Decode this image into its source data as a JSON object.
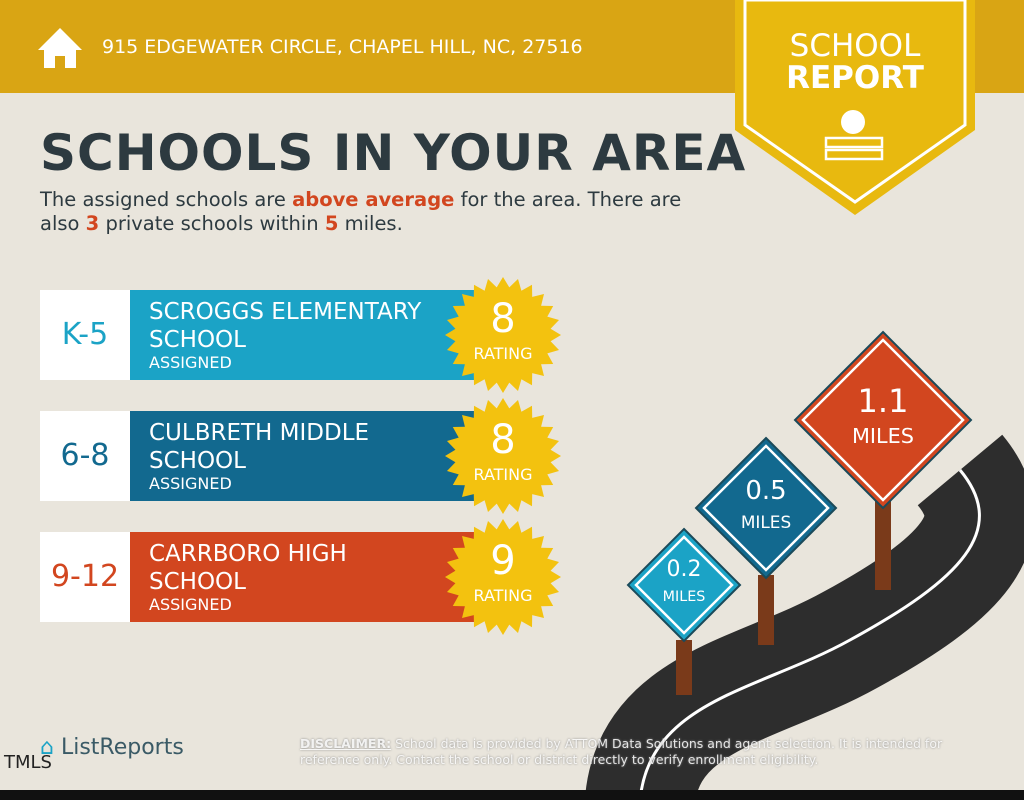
{
  "header": {
    "address": "915 EDGEWATER CIRCLE, CHAPEL HILL, NC, 27516",
    "badge_line1": "SCHOOL",
    "badge_line2": "REPORT"
  },
  "title": "SCHOOLS IN YOUR AREA",
  "summary": {
    "part1": "The assigned schools are",
    "highlight": "above average",
    "part2": "for the area. There are also",
    "count": "3",
    "part3": "private schools within",
    "distance": "5",
    "part4": "miles."
  },
  "schools": [
    {
      "grades": "K-5",
      "name": "SCROGGS ELEMENTARY SCHOOL",
      "status": "ASSIGNED",
      "rating": 8,
      "rating_label": "RATING",
      "color": "#1ba3c6"
    },
    {
      "grades": "6-8",
      "name": "CULBRETH MIDDLE SCHOOL",
      "status": "ASSIGNED",
      "rating": 8,
      "rating_label": "RATING",
      "color": "#12698f"
    },
    {
      "grades": "9-12",
      "name": "CARRBORO HIGH SCHOOL",
      "status": "ASSIGNED",
      "rating": 9,
      "rating_label": "RATING",
      "color": "#d2461f"
    }
  ],
  "signs": [
    {
      "distance": 1.1,
      "unit": "MILES",
      "color": "#d2461f"
    },
    {
      "distance": 0.5,
      "unit": "MILES",
      "color": "#12698f"
    },
    {
      "distance": 0.2,
      "unit": "MILES",
      "color": "#1ba3c6"
    }
  ],
  "footer": {
    "logo": "ListReports",
    "disclaimer_label": "DISCLAIMER:",
    "disclaimer": "School data is provided by ATTOM Data Solutions and agent selection. It is intended for reference only. Contact the school or district directly to verify enrollment eligibility.",
    "mls": "TMLS"
  }
}
